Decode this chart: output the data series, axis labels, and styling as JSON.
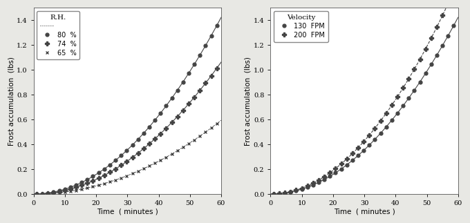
{
  "left": {
    "legend_title": "R.H.",
    "xlabel": "Time  ( minutes )",
    "ylabel": "Frost accumulation  (lbs)",
    "xlim": [
      0,
      60
    ],
    "ylim": [
      0,
      1.5
    ],
    "yticks": [
      0.0,
      0.2,
      0.4,
      0.6,
      0.8,
      1.0,
      1.2,
      1.4
    ],
    "xticks": [
      0,
      10,
      20,
      30,
      40,
      50,
      60
    ],
    "series": [
      {
        "label": "80  %",
        "a": 0.000395,
        "b": 0.0,
        "power": 2,
        "linestyle": "-",
        "marker": "o",
        "color": "#444444",
        "markersize": 3.5,
        "linewidth": 0.8,
        "markevery": 2
      },
      {
        "label": "74  %",
        "a": 0.000295,
        "b": 0.0,
        "power": 2,
        "linestyle": "-",
        "marker": "P",
        "color": "#444444",
        "markersize": 4,
        "linewidth": 0.8,
        "markevery": 2
      },
      {
        "label": "65  %",
        "a": 0.000165,
        "b": 0.0,
        "power": 2,
        "linestyle": "--",
        "marker": "x",
        "color": "#444444",
        "markersize": 3.5,
        "linewidth": 0.6,
        "markevery": 2
      }
    ],
    "legend_extra_line": true
  },
  "right": {
    "legend_title": "Velocity",
    "xlabel": "Time  ( minutes )",
    "ylabel": "Frost accumulation  (lbs)",
    "xlim": [
      0,
      60
    ],
    "ylim": [
      0,
      1.5
    ],
    "yticks": [
      0.0,
      0.2,
      0.4,
      0.6,
      0.8,
      1.0,
      1.2,
      1.4
    ],
    "xticks": [
      0,
      10,
      20,
      30,
      40,
      50,
      60
    ],
    "series": [
      {
        "label": "130  FPM",
        "a": 0.000395,
        "b": 0.0,
        "power": 2,
        "linestyle": "-",
        "marker": "o",
        "color": "#444444",
        "markersize": 3.5,
        "linewidth": 0.8,
        "markevery": 2
      },
      {
        "label": "200  FPM",
        "a": 0.000475,
        "b": 0.0,
        "power": 2,
        "linestyle": "--",
        "marker": "P",
        "color": "#444444",
        "markersize": 4,
        "linewidth": 0.8,
        "markevery": 2
      }
    ],
    "legend_extra_line": false
  },
  "bg_color": "#ffffff",
  "fig_color": "#e8e8e4"
}
